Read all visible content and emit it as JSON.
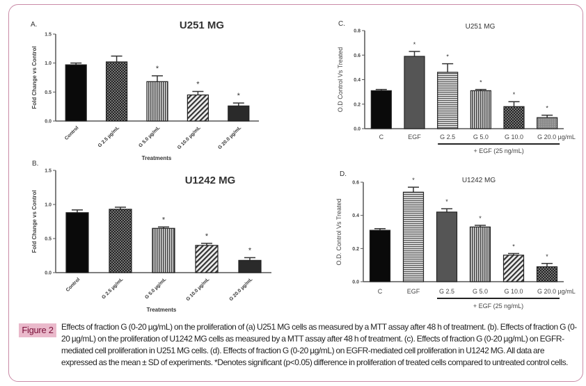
{
  "figure": {
    "label": "Figure 2",
    "caption": "Effects of fraction G (0-20 µg/mL) on the proliferation of (a) U251 MG cells as measured by a MTT assay after 48 h of treatment. (b). Effects of fraction G (0-20 µg/mL) on the proliferation of U1242 MG cells as measured by a MTT assay after 48 h of treatment. (c). Effects of fraction G (0-20 µg/mL) on EGFR-mediated cell proliferation in U251 MG cells. (d). Effects of fraction G (0-20 µg/mL) on EGFR-mediated cell proliferation in U1242 MG. All data are expressed as the mean ± SD of experiments. *Denotes significant (p<0.05) difference in proliferation of treated cells compared to untreated control cells."
  },
  "chart_data": [
    {
      "type": "bar",
      "panel": "A.",
      "title": "U251 MG",
      "xlabel": "Treatments",
      "ylabel": "Fold Change vs Control",
      "ylim": [
        0,
        1.5
      ],
      "yticks": [
        "0.0",
        "0.5",
        "1.0",
        "1.5"
      ],
      "ytick_values": [
        0,
        0.5,
        1.0,
        1.5
      ],
      "categories": [
        "Control",
        "G 2.5 µg/mL",
        "G 5.0 µg/mL",
        "G 10.0 µg/mL",
        "G 20.0 µg/mL"
      ],
      "values": [
        0.97,
        1.02,
        0.68,
        0.45,
        0.26
      ],
      "errors": [
        0.03,
        0.1,
        0.1,
        0.06,
        0.05
      ],
      "significant": [
        false,
        false,
        true,
        true,
        true
      ],
      "sig_marker": "*"
    },
    {
      "type": "bar",
      "panel": "B.",
      "title": "U1242 MG",
      "xlabel": "Treatments",
      "ylabel": "Fold Change vs Control",
      "ylim": [
        0,
        1.5
      ],
      "yticks": [
        "0.0",
        "0.5",
        "1.0",
        "1.5"
      ],
      "ytick_values": [
        0,
        0.5,
        1.0,
        1.5
      ],
      "categories": [
        "Control",
        "G 2.5 µg/mL",
        "G 5.0 µg/mL",
        "G 10.0 µg/mL",
        "G 20.0 µg/mL"
      ],
      "values": [
        0.88,
        0.93,
        0.65,
        0.4,
        0.18
      ],
      "errors": [
        0.04,
        0.03,
        0.02,
        0.03,
        0.04
      ],
      "significant": [
        false,
        false,
        true,
        true,
        true
      ],
      "sig_marker": "*"
    },
    {
      "type": "bar",
      "panel": "C.",
      "title": "U251 MG",
      "xlabel": "",
      "ylabel": "O.D Control Vs Treated",
      "ylim": [
        0,
        0.8
      ],
      "yticks": [
        "0.0",
        "0.2",
        "0.4",
        "0.6",
        "0.8"
      ],
      "ytick_values": [
        0,
        0.2,
        0.4,
        0.6,
        0.8
      ],
      "categories": [
        "C",
        "EGF",
        "G 2.5",
        "G 5.0",
        "G 10.0",
        "G 20.0 µg/mL"
      ],
      "values": [
        0.31,
        0.59,
        0.46,
        0.31,
        0.18,
        0.09
      ],
      "errors": [
        0.01,
        0.04,
        0.07,
        0.01,
        0.04,
        0.02
      ],
      "significant": [
        false,
        true,
        true,
        true,
        true,
        true
      ],
      "sig_marker": "*",
      "group_label": "+ EGF (25 ng/mL)"
    },
    {
      "type": "bar",
      "panel": "D.",
      "title": "U1242 MG",
      "xlabel": "",
      "ylabel": "O.D. Control Vs Treated",
      "ylim": [
        0,
        0.6
      ],
      "yticks": [
        "0.0",
        "0.2",
        "0.4",
        "0.6"
      ],
      "ytick_values": [
        0,
        0.2,
        0.4,
        0.6
      ],
      "categories": [
        "C",
        "EGF",
        "G 2.5",
        "G 5.0",
        "G 10.0",
        "G 20.0 µg/mL"
      ],
      "values": [
        0.31,
        0.54,
        0.42,
        0.33,
        0.16,
        0.09
      ],
      "errors": [
        0.01,
        0.03,
        0.02,
        0.01,
        0.01,
        0.02
      ],
      "significant": [
        false,
        true,
        true,
        true,
        true,
        true
      ],
      "sig_marker": "*",
      "group_label": "+ EGF (25 ng/mL)"
    }
  ]
}
